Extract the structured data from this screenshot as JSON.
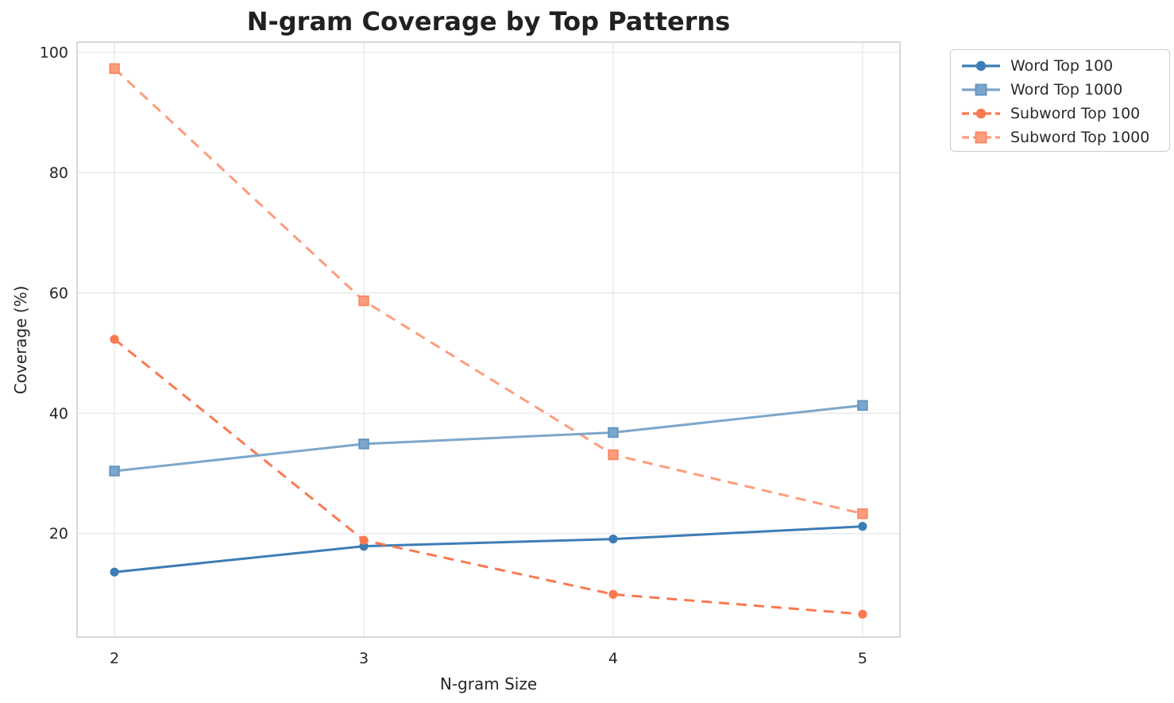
{
  "chart_data": {
    "type": "line",
    "title": "N-gram Coverage by Top Patterns",
    "xlabel": "N-gram Size",
    "ylabel": "Coverage (%)",
    "x": [
      2,
      3,
      4,
      5
    ],
    "xtick_labels": [
      "2",
      "3",
      "4",
      "5"
    ],
    "ytick_values": [
      20,
      40,
      60,
      80,
      100
    ],
    "ytick_labels": [
      "20",
      "40",
      "60",
      "80",
      "100"
    ],
    "xlim": [
      1.85,
      5.15
    ],
    "ylim": [
      2.8,
      101.7
    ],
    "grid": true,
    "legend_position": "outside upper right",
    "series": [
      {
        "name": "Word Top 100",
        "values": [
          13.6,
          17.9,
          19.1,
          21.2
        ],
        "color": "#3d7db5",
        "marker": "circle",
        "line_style": "solid",
        "marker_edge": "#3d7db5"
      },
      {
        "name": "Word Top 1000",
        "values": [
          30.4,
          34.9,
          36.8,
          41.3
        ],
        "color": "#7da7ca",
        "marker": "square",
        "line_style": "solid",
        "marker_edge": "#6396c2"
      },
      {
        "name": "Subword Top 100",
        "values": [
          52.3,
          18.9,
          9.9,
          6.6
        ],
        "color": "#f97950",
        "marker": "circle",
        "line_style": "dashed",
        "marker_edge": "#f97950"
      },
      {
        "name": "Subword Top 1000",
        "values": [
          97.3,
          58.7,
          33.1,
          23.3
        ],
        "color": "#fc9d7d",
        "marker": "square",
        "line_style": "dashed",
        "marker_edge": "#fb8a66"
      }
    ]
  },
  "style": {
    "grid_color": "#e7e7e7",
    "spine_color": "#cccccc",
    "tick_label_color": "#262626",
    "title_color": "#212121"
  }
}
